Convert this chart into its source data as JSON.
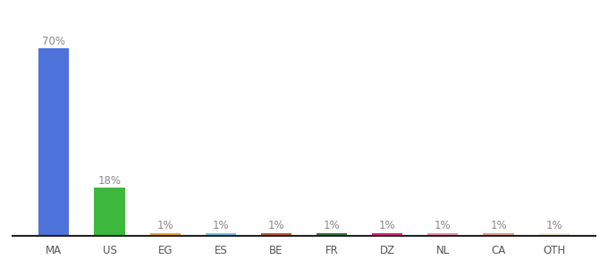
{
  "categories": [
    "MA",
    "US",
    "EG",
    "ES",
    "BE",
    "FR",
    "DZ",
    "NL",
    "CA",
    "OTH"
  ],
  "values": [
    70,
    18,
    1,
    1,
    1,
    1,
    1,
    1,
    1,
    1
  ],
  "bar_colors": [
    "#4d72d9",
    "#3cb83c",
    "#f5a623",
    "#6ec6f0",
    "#c05a2a",
    "#2e7d32",
    "#e91e8c",
    "#f48fb1",
    "#e8a090",
    "#f0f0d8"
  ],
  "label_texts": [
    "70%",
    "18%",
    "1%",
    "1%",
    "1%",
    "1%",
    "1%",
    "1%",
    "1%",
    "1%"
  ],
  "background_color": "#ffffff",
  "label_color": "#888888",
  "label_fontsize": 8.5,
  "tick_fontsize": 8.5,
  "ylim": [
    0,
    80
  ],
  "bar_width": 0.55
}
